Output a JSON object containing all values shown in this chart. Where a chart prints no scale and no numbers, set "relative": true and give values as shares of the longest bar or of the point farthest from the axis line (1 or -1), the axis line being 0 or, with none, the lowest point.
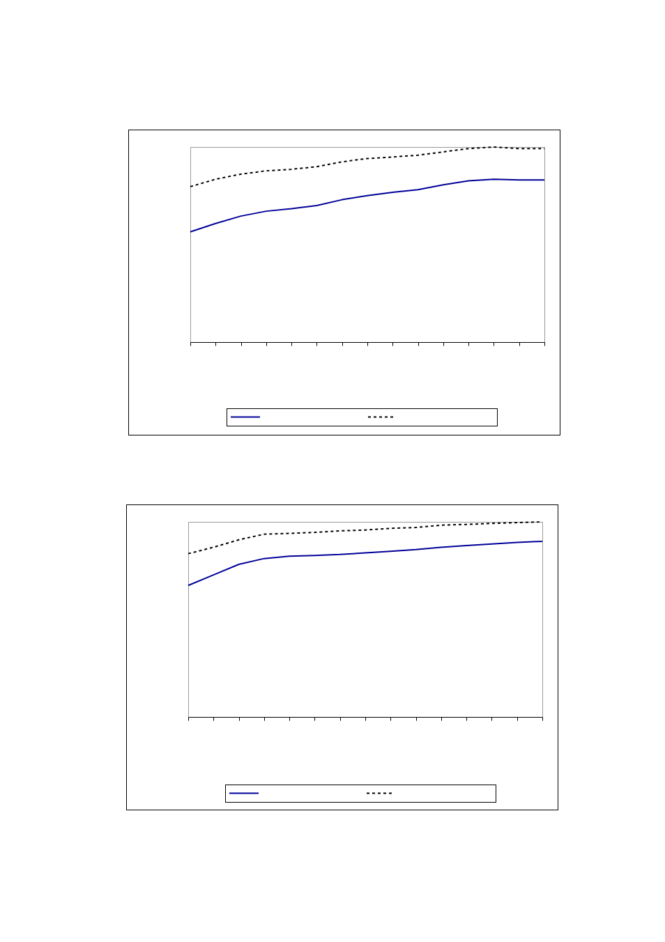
{
  "chart_data": [
    {
      "type": "line",
      "relative": true,
      "categories": [
        null,
        null,
        null,
        null,
        null,
        null,
        null,
        null,
        null,
        null,
        null,
        null,
        null,
        null,
        null
      ],
      "grid": false,
      "series": [
        {
          "color": "#000099",
          "line_style": "solid",
          "values": [
            0.565,
            0.608,
            0.646,
            0.671,
            0.684,
            0.7,
            0.73,
            0.751,
            0.768,
            0.781,
            0.806,
            0.827,
            0.835,
            0.831,
            0.831
          ]
        },
        {
          "color": "#000000",
          "line_style": "dashed",
          "values": [
            0.797,
            0.835,
            0.861,
            0.878,
            0.886,
            0.899,
            0.924,
            0.941,
            0.949,
            0.958,
            0.975,
            0.992,
            1,
            0.992,
            0.992
          ]
        }
      ]
    },
    {
      "type": "line",
      "relative": true,
      "categories": [
        null,
        null,
        null,
        null,
        null,
        null,
        null,
        null,
        null,
        null,
        null,
        null,
        null,
        null,
        null
      ],
      "grid": false,
      "series": [
        {
          "color": "#000099",
          "line_style": "solid",
          "values": [
            0.674,
            0.728,
            0.782,
            0.812,
            0.824,
            0.828,
            0.833,
            0.841,
            0.849,
            0.858,
            0.87,
            0.879,
            0.887,
            0.895,
            0.9
          ]
        },
        {
          "color": "#000000",
          "line_style": "dashed",
          "values": [
            0.837,
            0.87,
            0.908,
            0.937,
            0.941,
            0.946,
            0.954,
            0.958,
            0.967,
            0.971,
            0.983,
            0.987,
            0.992,
            0.996,
            1
          ]
        }
      ]
    }
  ]
}
